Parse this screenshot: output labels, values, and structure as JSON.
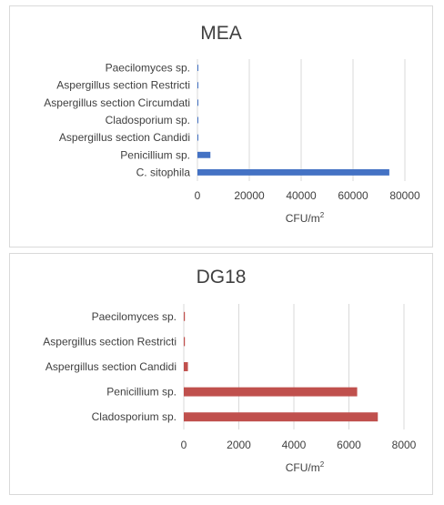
{
  "chart_data": [
    {
      "type": "bar",
      "orientation": "horizontal",
      "title": "MEA",
      "xlabel": "CFU/m",
      "xlabel_superscript": "2",
      "categories": [
        "Paecilomyces sp.",
        "Aspergillus section Restricti",
        "Aspergillus section Circumdati",
        "Cladosporium sp.",
        "Aspergillus section Candidi",
        "Penicillium sp.",
        "C. sitophila"
      ],
      "values": [
        150,
        150,
        150,
        150,
        150,
        5000,
        74000
      ],
      "xlim": [
        0,
        80000
      ],
      "xticks": [
        0,
        20000,
        40000,
        60000,
        80000
      ],
      "color": "#4472c4",
      "grid": true,
      "legend": "none"
    },
    {
      "type": "bar",
      "orientation": "horizontal",
      "title": "DG18",
      "xlabel": "CFU/m",
      "xlabel_superscript": "2",
      "categories": [
        "Paecilomyces sp.",
        "Aspergillus section Restricti",
        "Aspergillus section Candidi",
        "Penicillium sp.",
        "Cladosporium sp."
      ],
      "values": [
        40,
        40,
        150,
        6300,
        7050
      ],
      "xlim": [
        0,
        8000
      ],
      "xticks": [
        0,
        2000,
        4000,
        6000,
        8000
      ],
      "color": "#c0504d",
      "grid": true,
      "legend": "none"
    }
  ]
}
